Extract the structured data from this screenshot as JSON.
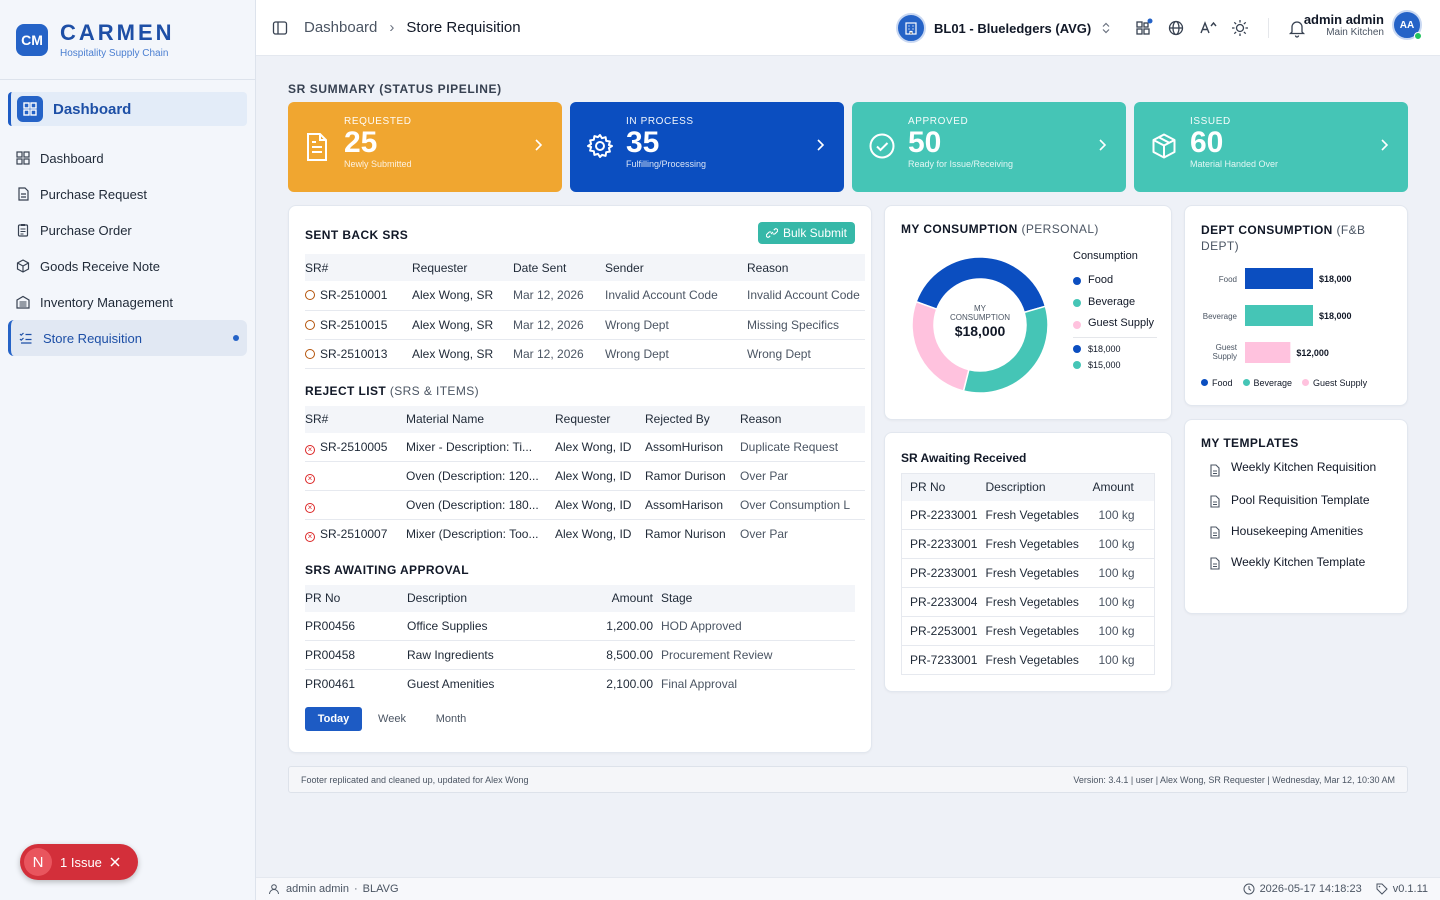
{
  "brand": {
    "badge": "CM",
    "name": "CARMEN",
    "tagline": "Hospitality Supply Chain"
  },
  "sidebar": {
    "main": "Dashboard",
    "items": [
      {
        "label": "Dashboard",
        "icon": "grid-icon"
      },
      {
        "label": "Purchase Request",
        "icon": "document-icon"
      },
      {
        "label": "Purchase Order",
        "icon": "clipboard-icon"
      },
      {
        "label": "Goods Receive Note",
        "icon": "package-icon"
      },
      {
        "label": "Inventory Management",
        "icon": "warehouse-icon"
      },
      {
        "label": "Store Requisition",
        "icon": "list-check-icon"
      }
    ]
  },
  "issue": {
    "letter": "N",
    "text": "1 Issue"
  },
  "topbar": {
    "crumbs": [
      "Dashboard",
      "Store Requisition"
    ],
    "org": "BL01 - Blueledgers (AVG)",
    "user_name": "admin admin",
    "user_location": "Main Kitchen",
    "avatar": "AA"
  },
  "summary": {
    "title": "SR SUMMARY (STATUS PIPELINE)",
    "cards": [
      {
        "label": "REQUESTED",
        "value": "25",
        "sub": "Newly Submitted",
        "color": "#f0a630"
      },
      {
        "label": "IN PROCESS",
        "value": "35",
        "sub": "Fulfilling/Processing",
        "color": "#0b4ec0"
      },
      {
        "label": "APPROVED",
        "value": "50",
        "sub": "Ready for Issue/Receiving",
        "color": "#45c5b6"
      },
      {
        "label": "ISSUED",
        "value": "60",
        "sub": "Material Handed Over",
        "color": "#45c5b6"
      }
    ]
  },
  "sent_back": {
    "title": "SENT BACK SRS",
    "button": "Bulk Submit",
    "headers": [
      "SR#",
      "Requester",
      "Date Sent",
      "Sender",
      "Reason"
    ],
    "rows": [
      [
        "SR-2510001",
        "Alex Wong, SR",
        "Mar 12, 2026",
        "Invalid Account Code",
        "Invalid Account Code"
      ],
      [
        "SR-2510015",
        "Alex Wong, SR",
        "Mar 12, 2026",
        "Wrong Dept",
        "Missing Specifics"
      ],
      [
        "SR-2510013",
        "Alex Wong, SR",
        "Mar 12, 2026",
        "Wrong Dept",
        "Wrong Dept"
      ]
    ]
  },
  "reject": {
    "title": "REJECT LIST",
    "title_light": "(SRS & ITEMS)",
    "headers": [
      "SR#",
      "Material Name",
      "Requester",
      "Rejected By",
      "Reason"
    ],
    "rows": [
      [
        "SR-2510005",
        "Mixer - Description: Ti...",
        "Alex Wong, ID",
        "AssomHurison",
        "Duplicate Request"
      ],
      [
        "",
        "Oven (Description: 120...",
        "Alex Wong, ID",
        "Ramor Durison",
        "Over Par"
      ],
      [
        "",
        "Oven (Description: 180...",
        "Alex Wong, ID",
        "AssomHarison",
        "Over Consumption L"
      ],
      [
        "SR-2510007",
        "Mixer (Description: Too...",
        "Alex Wong, ID",
        "Ramor Nurison",
        "Over Par"
      ]
    ]
  },
  "awaiting_approval": {
    "title": "SRS AWAITING APPROVAL",
    "headers": [
      "PR No",
      "Description",
      "Amount",
      "Stage"
    ],
    "rows": [
      [
        "PR00456",
        "Office Supplies",
        "1,200.00",
        "HOD Approved"
      ],
      [
        "PR00458",
        "Raw Ingredients",
        "8,500.00",
        "Procurement Review"
      ],
      [
        "PR00461",
        "Guest Amenities",
        "2,100.00",
        "Final Approval"
      ]
    ],
    "ranges": [
      "Today",
      "Week",
      "Month"
    ]
  },
  "my_consumption": {
    "title": "MY CONSUMPTION",
    "title_light": "(PERSONAL)",
    "center_label": "MY CONSUMPTION",
    "center_value": "$18,000",
    "legend_title": "Consumption",
    "legend": [
      "Food",
      "Beverage",
      "Guest Supply"
    ],
    "values": [
      "$18,000",
      "$15,000"
    ]
  },
  "dept_consumption": {
    "title": "DEPT CONSUMPTION",
    "title_light": "(F&B DEPT)",
    "legend": [
      "Food",
      "Beverage",
      "Guest Supply"
    ]
  },
  "chart_data": [
    {
      "type": "pie",
      "title": "MY CONSUMPTION (PERSONAL)",
      "categories": [
        "Food",
        "Beverage",
        "Guest Supply"
      ],
      "values": [
        18000,
        15000,
        12000
      ],
      "colors": [
        "#0b4ec0",
        "#45c5b6",
        "#ffc2de"
      ]
    },
    {
      "type": "bar",
      "title": "DEPT CONSUMPTION (F&B DEPT)",
      "orientation": "horizontal",
      "categories": [
        "Food",
        "Beverage",
        "Guest Supply"
      ],
      "values": [
        18000,
        18000,
        12000
      ],
      "labels": [
        "$18,000",
        "$18,000",
        "$12,000"
      ],
      "colors": [
        "#0b4ec0",
        "#45c5b6",
        "#ffc2de"
      ]
    }
  ],
  "awaiting_received": {
    "title": "SR Awaiting Received",
    "headers": [
      "PR No",
      "Description",
      "Amount"
    ],
    "rows": [
      [
        "PR-2233001",
        "Fresh Vegetables",
        "100 kg"
      ],
      [
        "PR-2233001",
        "Fresh Vegetables",
        "100 kg"
      ],
      [
        "PR-2233001",
        "Fresh Vegetables",
        "100 kg"
      ],
      [
        "PR-2233004",
        "Fresh Vegetables",
        "100 kg"
      ],
      [
        "PR-2253001",
        "Fresh Vegetables",
        "100 kg"
      ],
      [
        "PR-7233001",
        "Fresh Vegetables",
        "100 kg"
      ]
    ]
  },
  "templates": {
    "title": "MY TEMPLATES",
    "items": [
      "Weekly Kitchen Requisition",
      "Pool Requisition Template",
      "Housekeeping Amenities",
      "Weekly Kitchen Template"
    ]
  },
  "footer": {
    "left": "Footer replicated and cleaned up, updated for Alex Wong",
    "right": "Version: 3.4.1 | user | Alex Wong, SR Requester | Wednesday, Mar 12, 10:30 AM"
  },
  "status": {
    "user": "admin admin",
    "org": "BLAVG",
    "datetime": "2026-05-17 14:18:23",
    "version": "v0.1.11"
  }
}
